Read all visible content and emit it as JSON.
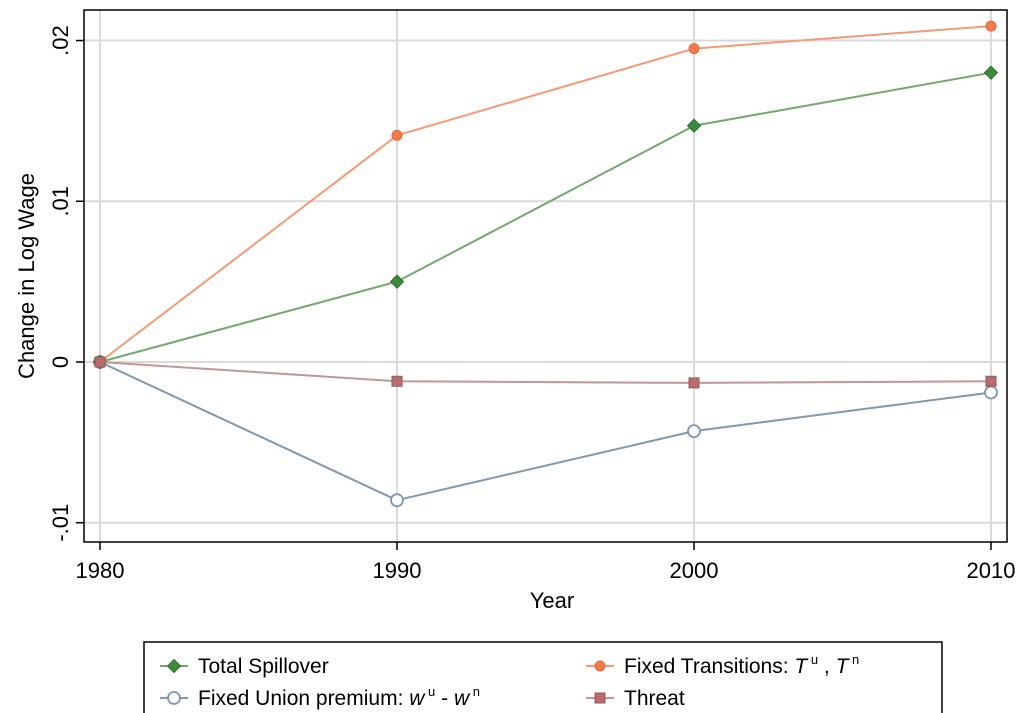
{
  "chart_data": {
    "type": "line",
    "xlabel": "Year",
    "ylabel": "Change in Log Wage",
    "x": [
      1980,
      1990,
      2000,
      2010
    ],
    "xlim": [
      1980,
      2010
    ],
    "ylim": [
      -0.0112,
      0.0219
    ],
    "x_ticks": [
      1980,
      1990,
      2000,
      2010
    ],
    "x_tick_labels": [
      "1980",
      "1990",
      "2000",
      "2010"
    ],
    "y_ticks": [
      -0.01,
      0,
      0.01,
      0.02
    ],
    "y_tick_labels": [
      "-.01",
      "0",
      ".01",
      ".02"
    ],
    "grid": true,
    "legend_position": "bottom",
    "series": [
      {
        "key": "total_spillover",
        "values": [
          0,
          0.005,
          0.0147,
          0.018
        ],
        "color": "#72a96b",
        "marker": "diamond",
        "marker_fill": "#3d8a3d",
        "legend": {
          "text": "Total Spillover"
        }
      },
      {
        "key": "fixed_transitions",
        "values": [
          0,
          0.0141,
          0.0195,
          0.0209
        ],
        "color": "#f59a74",
        "marker": "circle",
        "marker_fill": "#f07b4b",
        "legend": {
          "text": "Fixed Transitions: ",
          "sym1": "T",
          "sup1": "u",
          "sep": ", ",
          "sym2": "T",
          "sup2": "n"
        }
      },
      {
        "key": "fixed_union_premium",
        "values": [
          0,
          -0.0086,
          -0.0043,
          -0.0019
        ],
        "color": "#7f98ad",
        "marker": "hollow-circle",
        "marker_fill": "#ffffff",
        "legend": {
          "text": "Fixed Union premium: ",
          "sym1": "w",
          "sup1": "u",
          "sep": " - ",
          "sym2": "w",
          "sup2": "n"
        }
      },
      {
        "key": "threat",
        "values": [
          0,
          -0.0012,
          -0.0013,
          -0.0012
        ],
        "color": "#c49595",
        "marker": "square",
        "marker_fill": "#b76d6d",
        "legend": {
          "text": "Threat"
        }
      }
    ]
  }
}
